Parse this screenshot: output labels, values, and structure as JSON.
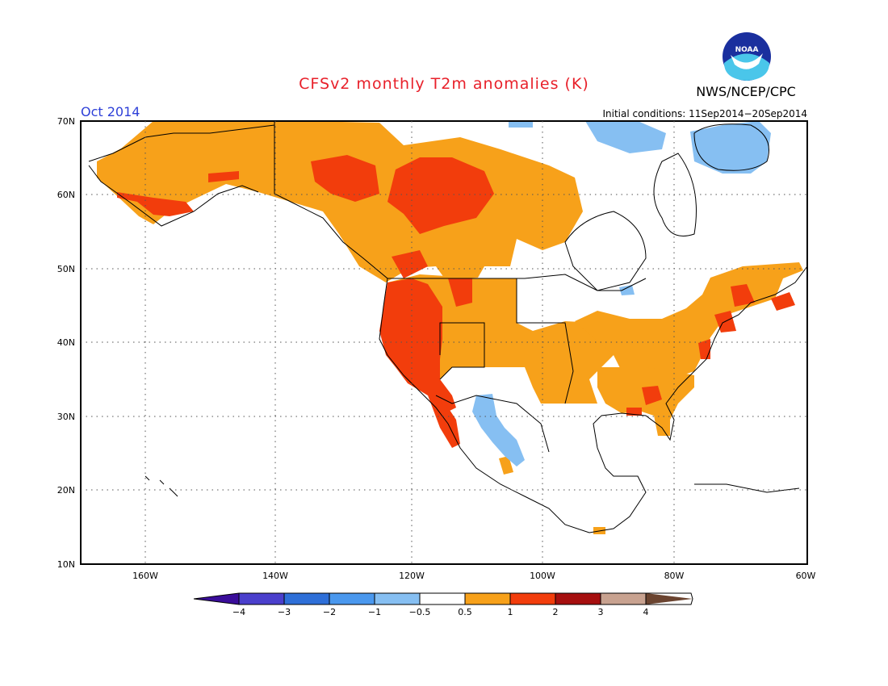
{
  "header": {
    "title": "CFSv2 monthly T2m anomalies (K)",
    "agency": "NWS/NCEP/CPC",
    "logo_text": "NOAA",
    "month": "Oct 2014",
    "initial_conditions": "Initial conditions: 11Sep2014−20Sep2014"
  },
  "map": {
    "lon_range": [
      -172,
      -60
    ],
    "lat_range": [
      10,
      70
    ],
    "lat_labels": [
      "70N",
      "60N",
      "50N",
      "40N",
      "30N",
      "20N",
      "10N"
    ],
    "lon_labels": [
      "160W",
      "140W",
      "120W",
      "100W",
      "80W",
      "60W"
    ]
  },
  "colorbar": {
    "labels": [
      "−4",
      "−3",
      "−2",
      "−1",
      "−0.5",
      "0.5",
      "1",
      "2",
      "3",
      "4"
    ],
    "colors": {
      "lt_m4": "#3a0d9a",
      "m4_m3": "#4a3fcc",
      "m3_m2": "#2e6fd8",
      "m2_m1": "#4a98ee",
      "m1_m05": "#86bff2",
      "m05_05": "#ffffff",
      "p05_1": "#f7a11a",
      "p1_2": "#f23d0c",
      "p2_3": "#a60f0f",
      "p3_4": "#c8a290",
      "gt_4": "#6b4430"
    }
  },
  "anomaly_regions": [
    {
      "name": "alaska-yukon-bc",
      "level": "p05_1"
    },
    {
      "name": "canadian-prairies",
      "level": "p05_1"
    },
    {
      "name": "northern-canada-hot-core",
      "level": "p1_2"
    },
    {
      "name": "yukon-hot-core",
      "level": "p1_2"
    },
    {
      "name": "southern-alaska-coast",
      "level": "p1_2"
    },
    {
      "name": "us-west-coast",
      "level": "p1_2"
    },
    {
      "name": "pacific-northwest",
      "level": "p1_2"
    },
    {
      "name": "central-plains",
      "level": "p05_1"
    },
    {
      "name": "great-lakes-east",
      "level": "p05_1"
    },
    {
      "name": "southeast-us",
      "level": "p05_1"
    },
    {
      "name": "georgia-hot-spot",
      "level": "p1_2"
    },
    {
      "name": "new-england",
      "level": "p05_1"
    },
    {
      "name": "mid-atlantic-hot-spot",
      "level": "p1_2"
    },
    {
      "name": "nova-scotia",
      "level": "p05_1"
    },
    {
      "name": "baja-hot",
      "level": "p1_2"
    },
    {
      "name": "northwest-mexico-cool",
      "level": "m1_m05"
    },
    {
      "name": "greenland-cool",
      "level": "m1_m05"
    },
    {
      "name": "baffin-cool",
      "level": "m1_m05"
    },
    {
      "name": "michigan-cool",
      "level": "m1_m05"
    }
  ]
}
